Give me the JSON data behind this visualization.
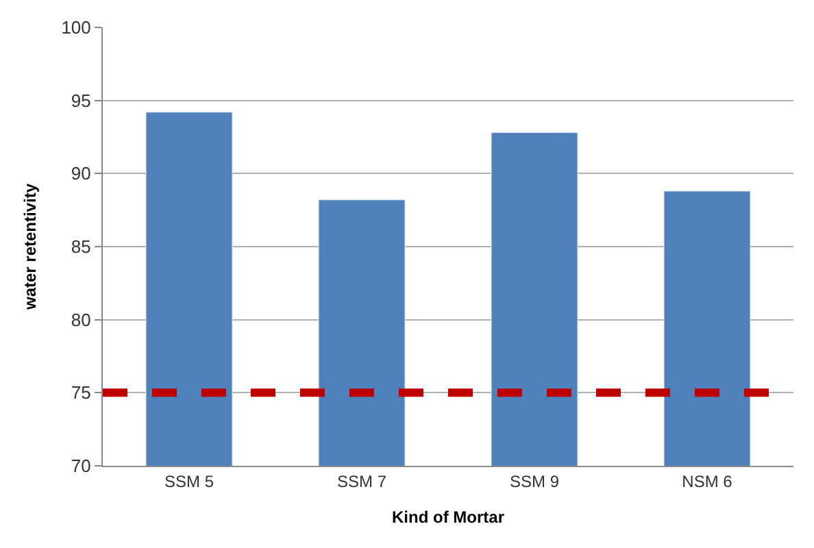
{
  "chart_data": {
    "type": "bar",
    "xlabel": "Kind of Mortar",
    "ylabel": "water retentivity",
    "categories": [
      "SSM 5",
      "SSM 7",
      "SSM 9",
      "NSM 6"
    ],
    "values": [
      94.2,
      88.2,
      92.8,
      88.8
    ],
    "color": "#4f81bd",
    "ylim": [
      70,
      100
    ],
    "yticks": [
      70,
      75,
      80,
      85,
      90,
      95,
      100
    ],
    "grid": "y",
    "ref_lines": [
      {
        "axis": "y",
        "value": 75,
        "color": "#c00000",
        "line_style": "dashed"
      }
    ]
  }
}
